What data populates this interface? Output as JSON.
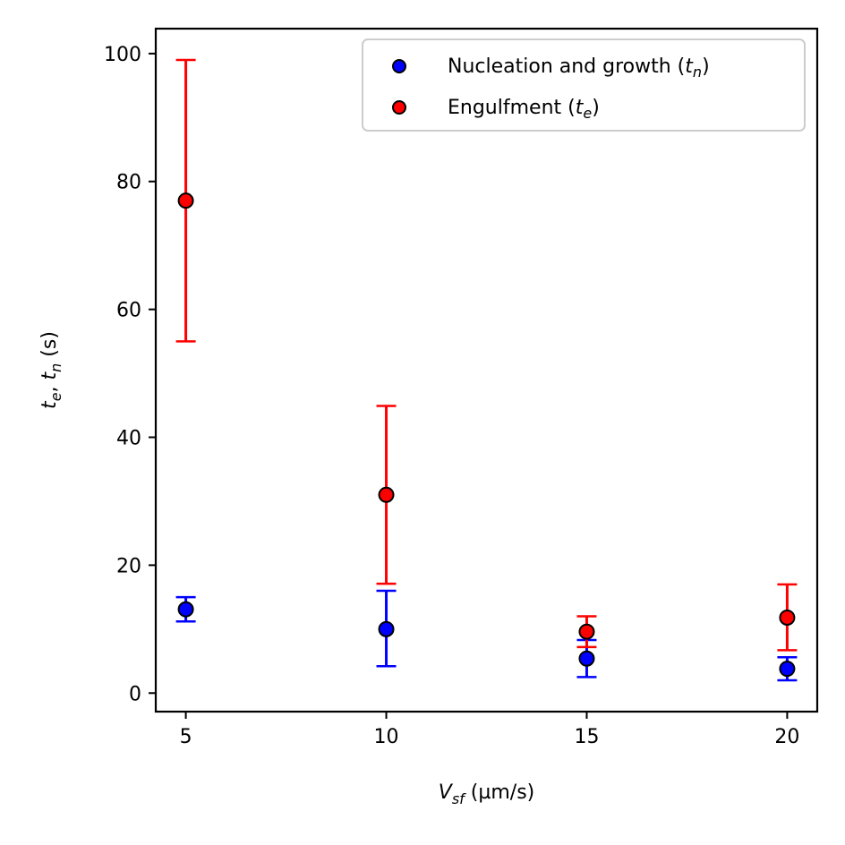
{
  "chart_data": {
    "type": "scatter",
    "x": [
      5,
      10,
      15,
      20
    ],
    "xlim": [
      4.25,
      20.75
    ],
    "ylim": [
      -2.9,
      103.9
    ],
    "xticks": [
      5,
      10,
      15,
      20
    ],
    "yticks": [
      0,
      20,
      40,
      60,
      80,
      100
    ],
    "xlabel": {
      "main": "V",
      "sub": "sf",
      "rest": " (µm/s)"
    },
    "ylabel": {
      "t1": "t",
      "s1": "e",
      "sep": ", ",
      "t2": "t",
      "s2": "n",
      "rest": " (s)"
    },
    "legend_position": "top-right",
    "series": [
      {
        "name": "Nucleation and growth",
        "legend": {
          "prefix": "Nucleation and growth (",
          "var": "t",
          "sub": "n",
          "suffix": ")"
        },
        "color": "#0000ff",
        "values": [
          13.1,
          10.0,
          5.4,
          3.8
        ],
        "err_low": [
          11.2,
          4.2,
          2.5,
          2.0
        ],
        "err_high": [
          15.0,
          16.0,
          8.3,
          5.6
        ]
      },
      {
        "name": "Engulfment",
        "legend": {
          "prefix": "Engulfment (",
          "var": "t",
          "sub": "e",
          "suffix": ")"
        },
        "color": "#ff0000",
        "values": [
          77.0,
          31.0,
          9.6,
          11.8
        ],
        "err_low": [
          55.0,
          17.1,
          7.2,
          6.7
        ],
        "err_high": [
          99.0,
          44.9,
          12.0,
          17.0
        ]
      }
    ]
  }
}
